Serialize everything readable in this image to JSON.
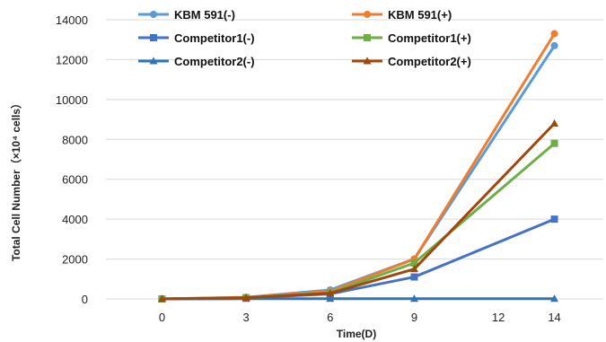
{
  "chart_data": {
    "type": "line",
    "x": [
      0,
      3,
      6,
      9,
      12,
      14
    ],
    "x_ticks": [
      0,
      3,
      6,
      9,
      12,
      14
    ],
    "y_ticks": [
      0,
      2000,
      4000,
      6000,
      8000,
      10000,
      12000,
      14000
    ],
    "xlim": [
      -2,
      16
    ],
    "ylim": [
      0,
      14000
    ],
    "xlabel": "Time(D)",
    "ylabel": "Total Cell Number（×10⁴ cells）",
    "grid": "horizontal",
    "legend_position": "top",
    "series": [
      {
        "name": "KBM 591(-)",
        "color": "#5b9bd5",
        "marker": "circle",
        "x": [
          0,
          3,
          6,
          9,
          14
        ],
        "values": [
          0,
          80,
          450,
          2000,
          12700
        ]
      },
      {
        "name": "KBM 591(+)",
        "color": "#ed7d31",
        "marker": "circle",
        "x": [
          0,
          3,
          6,
          9,
          14
        ],
        "values": [
          0,
          80,
          380,
          2000,
          13300
        ]
      },
      {
        "name": "Competitor1(-)",
        "color": "#4472c4",
        "marker": "square",
        "x": [
          0,
          3,
          6,
          9,
          14
        ],
        "values": [
          0,
          50,
          250,
          1100,
          4000
        ]
      },
      {
        "name": "Competitor1(+)",
        "color": "#70ad47",
        "marker": "square",
        "x": [
          0,
          3,
          6,
          9,
          14
        ],
        "values": [
          0,
          60,
          300,
          1800,
          7800
        ]
      },
      {
        "name": "Competitor2(-)",
        "color": "#2e75b6",
        "marker": "triangle",
        "x": [
          0,
          3,
          6,
          9,
          14
        ],
        "values": [
          0,
          10,
          10,
          10,
          10
        ]
      },
      {
        "name": "Competitor2(+)",
        "color": "#9e480e",
        "marker": "triangle",
        "x": [
          0,
          3,
          6,
          9,
          14
        ],
        "values": [
          0,
          60,
          280,
          1500,
          8800
        ]
      }
    ]
  }
}
